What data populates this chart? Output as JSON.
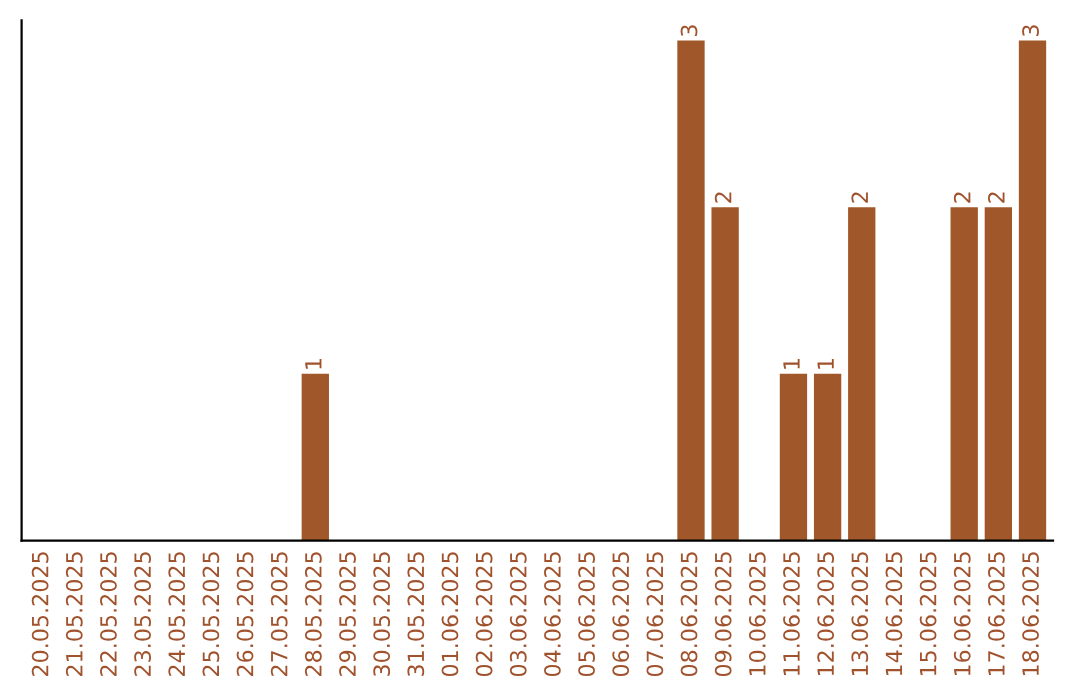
{
  "chart_data": {
    "type": "bar",
    "categories": [
      "20.05.2025",
      "21.05.2025",
      "22.05.2025",
      "23.05.2025",
      "24.05.2025",
      "25.05.2025",
      "26.05.2025",
      "27.05.2025",
      "28.05.2025",
      "29.05.2025",
      "30.05.2025",
      "31.05.2025",
      "01.06.2025",
      "02.06.2025",
      "03.06.2025",
      "04.06.2025",
      "05.06.2025",
      "06.06.2025",
      "07.06.2025",
      "08.06.2025",
      "09.06.2025",
      "10.06.2025",
      "11.06.2025",
      "12.06.2025",
      "13.06.2025",
      "14.06.2025",
      "15.06.2025",
      "16.06.2025",
      "17.06.2025",
      "18.06.2025"
    ],
    "values": [
      0,
      0,
      0,
      0,
      0,
      0,
      0,
      0,
      1,
      0,
      0,
      0,
      0,
      0,
      0,
      0,
      0,
      0,
      0,
      3,
      2,
      0,
      1,
      1,
      2,
      0,
      0,
      2,
      2,
      3
    ],
    "value_labels": [
      null,
      null,
      null,
      null,
      null,
      null,
      null,
      null,
      "1",
      null,
      null,
      null,
      null,
      null,
      null,
      null,
      null,
      null,
      null,
      "3",
      "2",
      null,
      "1",
      "1",
      "2",
      null,
      null,
      "2",
      "2",
      "3"
    ],
    "color": "#a0582a",
    "tick_labels": "x",
    "grid": false,
    "legend": false
  }
}
